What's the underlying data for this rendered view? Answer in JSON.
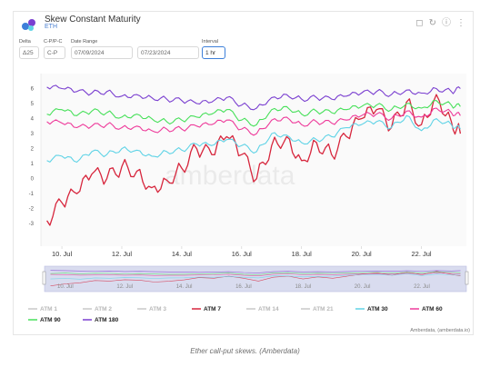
{
  "header": {
    "title": "Skew Constant Maturity",
    "subtitle": "ETH",
    "icons": [
      "bookmark-icon",
      "refresh-icon",
      "info-icon",
      "more-icon"
    ]
  },
  "controls": {
    "delta": {
      "label": "Delta",
      "value": "Δ25"
    },
    "cpc": {
      "label": "C-P/P-C",
      "value": "C-P"
    },
    "date_range": {
      "label": "Date Range",
      "start": "07/09/2024",
      "end": "07/23/2024"
    },
    "interval": {
      "label": "Interval",
      "value": "1 hr"
    }
  },
  "chart_data": {
    "type": "line",
    "x_ticks": [
      "10. Jul",
      "12. Jul",
      "14. Jul",
      "16. Jul",
      "18. Jul",
      "20. Jul",
      "22. Jul"
    ],
    "x_range": [
      9.3,
      23.5
    ],
    "y_ticks": [
      "-3",
      "-2",
      "-1",
      "0",
      "1",
      "2",
      "3",
      "4",
      "5",
      "6"
    ],
    "ylim": [
      -4.5,
      7
    ],
    "grid": false,
    "legend_position": "bottom",
    "watermark": "amberdata",
    "credit": "Amberdata, (amberdata.io)",
    "navigator_ticks": [
      "10. Jul",
      "12. Jul",
      "14. Jul",
      "16. Jul",
      "18. Jul",
      "20. Jul",
      "22. Jul"
    ],
    "series": [
      {
        "name": "ATM 1",
        "color": "#c8c8c8",
        "visible": false,
        "x": [],
        "values": []
      },
      {
        "name": "ATM 2",
        "color": "#c8c8c8",
        "visible": false,
        "x": [],
        "values": []
      },
      {
        "name": "ATM 3",
        "color": "#c8c8c8",
        "visible": false,
        "x": [],
        "values": []
      },
      {
        "name": "ATM 7",
        "color": "#d7263d",
        "visible": true,
        "x": [
          9.5,
          10.0,
          10.5,
          11.0,
          11.5,
          12.0,
          12.5,
          13.0,
          13.5,
          14.0,
          14.5,
          15.0,
          15.5,
          16.0,
          16.5,
          17.0,
          17.5,
          18.0,
          18.5,
          19.0,
          19.5,
          20.0,
          20.5,
          21.0,
          21.5,
          22.0,
          22.5,
          23.0,
          23.3
        ],
        "values": [
          -2.8,
          -1.6,
          -1.0,
          0.3,
          0.0,
          0.8,
          0.5,
          -0.6,
          -0.1,
          0.7,
          2.0,
          1.6,
          2.8,
          1.6,
          0.0,
          2.2,
          2.8,
          1.2,
          2.4,
          1.6,
          2.8,
          4.0,
          4.6,
          3.4,
          5.1,
          3.6,
          5.6,
          3.8,
          3.0
        ]
      },
      {
        "name": "ATM 14",
        "color": "#c8c8c8",
        "visible": false,
        "x": [],
        "values": []
      },
      {
        "name": "ATM 21",
        "color": "#c8c8c8",
        "visible": false,
        "x": [],
        "values": []
      },
      {
        "name": "ATM 30",
        "color": "#5fd3e6",
        "visible": true,
        "x": [
          9.5,
          10.0,
          10.5,
          11.0,
          11.5,
          12.0,
          12.5,
          13.0,
          13.5,
          14.0,
          14.5,
          15.0,
          15.5,
          16.0,
          16.5,
          17.0,
          17.5,
          18.0,
          18.5,
          19.0,
          19.5,
          20.0,
          20.5,
          21.0,
          21.5,
          22.0,
          22.5,
          23.0,
          23.3
        ],
        "values": [
          1.2,
          1.5,
          1.1,
          1.8,
          1.6,
          2.0,
          1.9,
          1.5,
          1.8,
          1.9,
          2.3,
          2.2,
          2.6,
          2.2,
          1.8,
          3.0,
          2.9,
          2.4,
          2.6,
          2.8,
          3.4,
          3.6,
          3.8,
          3.4,
          4.2,
          3.2,
          4.0,
          3.6,
          3.3
        ]
      },
      {
        "name": "ATM 60",
        "color": "#ee3a9a",
        "visible": true,
        "x": [
          9.5,
          10.0,
          10.5,
          11.0,
          11.5,
          12.0,
          12.5,
          13.0,
          13.5,
          14.0,
          14.5,
          15.0,
          15.5,
          16.0,
          16.5,
          17.0,
          17.5,
          18.0,
          18.5,
          19.0,
          19.5,
          20.0,
          20.5,
          21.0,
          21.5,
          22.0,
          22.5,
          23.0,
          23.3
        ],
        "values": [
          3.8,
          3.7,
          3.4,
          3.5,
          3.6,
          3.4,
          3.5,
          3.2,
          3.3,
          3.3,
          3.5,
          3.6,
          3.9,
          3.3,
          3.0,
          3.9,
          4.1,
          3.6,
          3.8,
          3.7,
          3.9,
          4.2,
          4.3,
          4.0,
          4.5,
          4.1,
          4.7,
          4.4,
          4.2
        ]
      },
      {
        "name": "ATM 90",
        "color": "#47e05a",
        "visible": true,
        "x": [
          9.5,
          10.0,
          10.5,
          11.0,
          11.5,
          12.0,
          12.5,
          13.0,
          13.5,
          14.0,
          14.5,
          15.0,
          15.5,
          16.0,
          16.5,
          17.0,
          17.5,
          18.0,
          18.5,
          19.0,
          19.5,
          20.0,
          20.5,
          21.0,
          21.5,
          22.0,
          22.5,
          23.0,
          23.3
        ],
        "values": [
          4.3,
          4.6,
          4.2,
          4.5,
          4.4,
          4.1,
          4.3,
          4.0,
          3.8,
          3.9,
          4.1,
          4.3,
          4.6,
          3.9,
          3.6,
          4.6,
          4.8,
          4.3,
          4.5,
          4.4,
          4.6,
          4.8,
          4.9,
          4.6,
          5.0,
          4.7,
          5.2,
          4.9,
          4.8
        ]
      },
      {
        "name": "ATM 180",
        "color": "#7a3fd0",
        "visible": true,
        "x": [
          9.5,
          10.0,
          10.5,
          11.0,
          11.5,
          12.0,
          12.5,
          13.0,
          13.5,
          14.0,
          14.5,
          15.0,
          15.5,
          16.0,
          16.5,
          17.0,
          17.5,
          18.0,
          18.5,
          19.0,
          19.5,
          20.0,
          20.5,
          21.0,
          21.5,
          22.0,
          22.5,
          23.0,
          23.3
        ],
        "values": [
          6.1,
          6.0,
          5.8,
          5.7,
          5.8,
          5.5,
          5.6,
          5.4,
          5.3,
          5.2,
          5.0,
          5.1,
          5.4,
          4.9,
          4.7,
          5.4,
          5.6,
          5.3,
          5.4,
          5.3,
          5.5,
          5.7,
          5.8,
          5.6,
          5.9,
          5.7,
          6.0,
          5.8,
          6.0
        ]
      }
    ]
  },
  "caption": "Ether call-put skews. (Amberdata)"
}
